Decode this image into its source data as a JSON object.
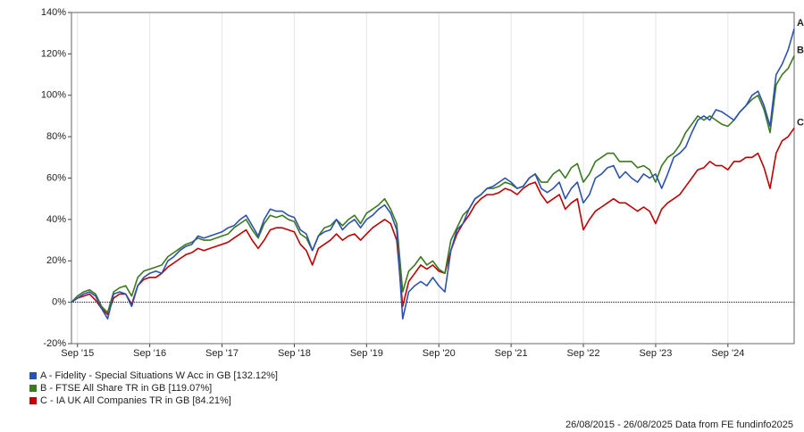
{
  "chart_data": {
    "type": "line",
    "x": [
      "2015-08",
      "2015-09",
      "2015-10",
      "2015-11",
      "2015-12",
      "2016-01",
      "2016-02",
      "2016-03",
      "2016-04",
      "2016-05",
      "2016-06",
      "2016-07",
      "2016-08",
      "2016-09",
      "2016-10",
      "2016-11",
      "2016-12",
      "2017-01",
      "2017-02",
      "2017-03",
      "2017-04",
      "2017-05",
      "2017-06",
      "2017-07",
      "2017-08",
      "2017-09",
      "2017-10",
      "2017-11",
      "2017-12",
      "2018-01",
      "2018-02",
      "2018-03",
      "2018-04",
      "2018-05",
      "2018-06",
      "2018-07",
      "2018-08",
      "2018-09",
      "2018-10",
      "2018-11",
      "2018-12",
      "2019-01",
      "2019-02",
      "2019-03",
      "2019-04",
      "2019-05",
      "2019-06",
      "2019-07",
      "2019-08",
      "2019-09",
      "2019-10",
      "2019-11",
      "2019-12",
      "2020-01",
      "2020-02",
      "2020-03",
      "2020-04",
      "2020-05",
      "2020-06",
      "2020-07",
      "2020-08",
      "2020-09",
      "2020-10",
      "2020-11",
      "2020-12",
      "2021-01",
      "2021-02",
      "2021-03",
      "2021-04",
      "2021-05",
      "2021-06",
      "2021-07",
      "2021-08",
      "2021-09",
      "2021-10",
      "2021-11",
      "2021-12",
      "2022-01",
      "2022-02",
      "2022-03",
      "2022-04",
      "2022-05",
      "2022-06",
      "2022-07",
      "2022-08",
      "2022-09",
      "2022-10",
      "2022-11",
      "2022-12",
      "2023-01",
      "2023-02",
      "2023-03",
      "2023-04",
      "2023-05",
      "2023-06",
      "2023-07",
      "2023-08",
      "2023-09",
      "2023-10",
      "2023-11",
      "2023-12",
      "2024-01",
      "2024-02",
      "2024-03",
      "2024-04",
      "2024-05",
      "2024-06",
      "2024-07",
      "2024-08",
      "2024-09",
      "2024-10",
      "2024-11",
      "2024-12",
      "2025-01",
      "2025-02",
      "2025-03",
      "2025-04",
      "2025-05",
      "2025-06",
      "2025-07",
      "2025-08"
    ],
    "series": [
      {
        "name": "A - Fidelity - Special Situations W Acc in GB [132.12%]",
        "label": "A",
        "color": "#2b52b0",
        "values": [
          0,
          2,
          4,
          5,
          3,
          -3,
          -8,
          4,
          5,
          4,
          -2,
          8,
          12,
          14,
          15,
          14,
          20,
          22,
          25,
          27,
          28,
          32,
          31,
          32,
          33,
          34,
          36,
          37,
          40,
          42,
          37,
          32,
          40,
          45,
          44,
          44,
          42,
          41,
          35,
          33,
          25,
          32,
          34,
          35,
          40,
          35,
          38,
          40,
          36,
          40,
          42,
          45,
          47,
          43,
          35,
          -8,
          5,
          8,
          10,
          8,
          12,
          8,
          5,
          25,
          35,
          38,
          45,
          50,
          52,
          55,
          56,
          58,
          60,
          58,
          55,
          56,
          60,
          62,
          55,
          53,
          55,
          58,
          50,
          55,
          58,
          48,
          52,
          60,
          62,
          65,
          66,
          60,
          63,
          60,
          58,
          62,
          60,
          62,
          55,
          62,
          70,
          72,
          75,
          82,
          88,
          90,
          88,
          93,
          92,
          90,
          88,
          92,
          95,
          100,
          102,
          95,
          85,
          110,
          115,
          122,
          132.12
        ]
      },
      {
        "name": "B - FTSE All Share TR in GB [119.07%]",
        "label": "B",
        "color": "#3b7a1e",
        "values": [
          0,
          3,
          5,
          6,
          4,
          -2,
          -5,
          5,
          7,
          8,
          3,
          12,
          15,
          16,
          17,
          18,
          22,
          24,
          26,
          28,
          29,
          31,
          30,
          30,
          31,
          32,
          33,
          36,
          38,
          40,
          35,
          31,
          38,
          42,
          41,
          42,
          40,
          39,
          33,
          31,
          25,
          32,
          36,
          37,
          40,
          37,
          40,
          42,
          38,
          43,
          45,
          47,
          50,
          45,
          38,
          5,
          15,
          18,
          22,
          18,
          20,
          16,
          14,
          30,
          36,
          42,
          45,
          50,
          52,
          55,
          55,
          56,
          58,
          57,
          55,
          56,
          60,
          62,
          58,
          58,
          62,
          64,
          60,
          65,
          67,
          58,
          62,
          68,
          70,
          72,
          72,
          68,
          68,
          68,
          65,
          66,
          64,
          58,
          66,
          70,
          72,
          76,
          82,
          86,
          90,
          88,
          90,
          88,
          86,
          85,
          88,
          92,
          95,
          98,
          100,
          93,
          82,
          105,
          110,
          113,
          119.07
        ]
      },
      {
        "name": "C - IA UK All Companies TR in GB [84.21%]",
        "label": "C",
        "color": "#c00000",
        "values": [
          0,
          2,
          3,
          4,
          1,
          -3,
          -6,
          2,
          4,
          4,
          -1,
          8,
          11,
          12,
          12,
          14,
          17,
          19,
          21,
          23,
          24,
          26,
          25,
          26,
          27,
          28,
          29,
          31,
          33,
          35,
          30,
          26,
          30,
          35,
          36,
          36,
          35,
          34,
          28,
          25,
          18,
          26,
          28,
          30,
          33,
          30,
          32,
          33,
          30,
          33,
          36,
          38,
          40,
          38,
          30,
          -2,
          10,
          14,
          18,
          16,
          18,
          15,
          14,
          25,
          33,
          38,
          42,
          47,
          50,
          52,
          52,
          53,
          55,
          54,
          52,
          55,
          57,
          58,
          52,
          48,
          50,
          52,
          45,
          48,
          50,
          35,
          40,
          44,
          46,
          48,
          50,
          48,
          48,
          46,
          44,
          46,
          44,
          38,
          45,
          48,
          50,
          52,
          56,
          60,
          64,
          65,
          68,
          66,
          66,
          64,
          68,
          68,
          70,
          70,
          72,
          65,
          55,
          72,
          78,
          80,
          84.21
        ]
      }
    ],
    "xlim": [
      "2015-08",
      "2025-08"
    ],
    "xticks": [
      {
        "value": "2015-09",
        "label": "Sep '15"
      },
      {
        "value": "2016-09",
        "label": "Sep '16"
      },
      {
        "value": "2017-09",
        "label": "Sep '17"
      },
      {
        "value": "2018-09",
        "label": "Sep '18"
      },
      {
        "value": "2019-09",
        "label": "Sep '19"
      },
      {
        "value": "2020-09",
        "label": "Sep '20"
      },
      {
        "value": "2021-09",
        "label": "Sep '21"
      },
      {
        "value": "2022-09",
        "label": "Sep '22"
      },
      {
        "value": "2023-09",
        "label": "Sep '23"
      },
      {
        "value": "2024-09",
        "label": "Sep '24"
      }
    ],
    "ylim": [
      -20,
      140
    ],
    "yticks": [
      {
        "value": -20,
        "label": "-20%"
      },
      {
        "value": 0,
        "label": "0%"
      },
      {
        "value": 20,
        "label": "20%"
      },
      {
        "value": 40,
        "label": "40%"
      },
      {
        "value": 60,
        "label": "60%"
      },
      {
        "value": 80,
        "label": "80%"
      },
      {
        "value": 100,
        "label": "100%"
      },
      {
        "value": 120,
        "label": "120%"
      },
      {
        "value": 140,
        "label": "140%"
      }
    ],
    "grid": "x",
    "zero_line": true,
    "footer": "26/08/2015 - 26/08/2025 Data from FE fundinfo2025"
  }
}
